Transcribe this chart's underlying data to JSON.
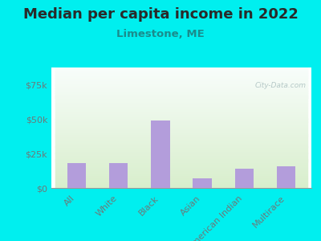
{
  "title": "Median per capita income in 2022",
  "subtitle": "Limestone, ME",
  "categories": [
    "All",
    "White",
    "Black",
    "Asian",
    "American Indian",
    "Multirace"
  ],
  "values": [
    18000,
    18000,
    49000,
    7000,
    14000,
    16000
  ],
  "bar_color": "#b39ddb",
  "background_color": "#00efef",
  "grad_top": "#f0faf0",
  "grad_bottom": "#e0f0d0",
  "title_color": "#2a2a2a",
  "subtitle_color": "#1a8c8c",
  "tick_label_color": "#6b7a7a",
  "ylim": [
    0,
    87500
  ],
  "yticks": [
    0,
    25000,
    50000,
    75000
  ],
  "ytick_labels": [
    "$0",
    "$25k",
    "$50k",
    "$75k"
  ],
  "watermark": "City-Data.com",
  "title_fontsize": 13,
  "subtitle_fontsize": 9.5,
  "tick_fontsize": 8
}
